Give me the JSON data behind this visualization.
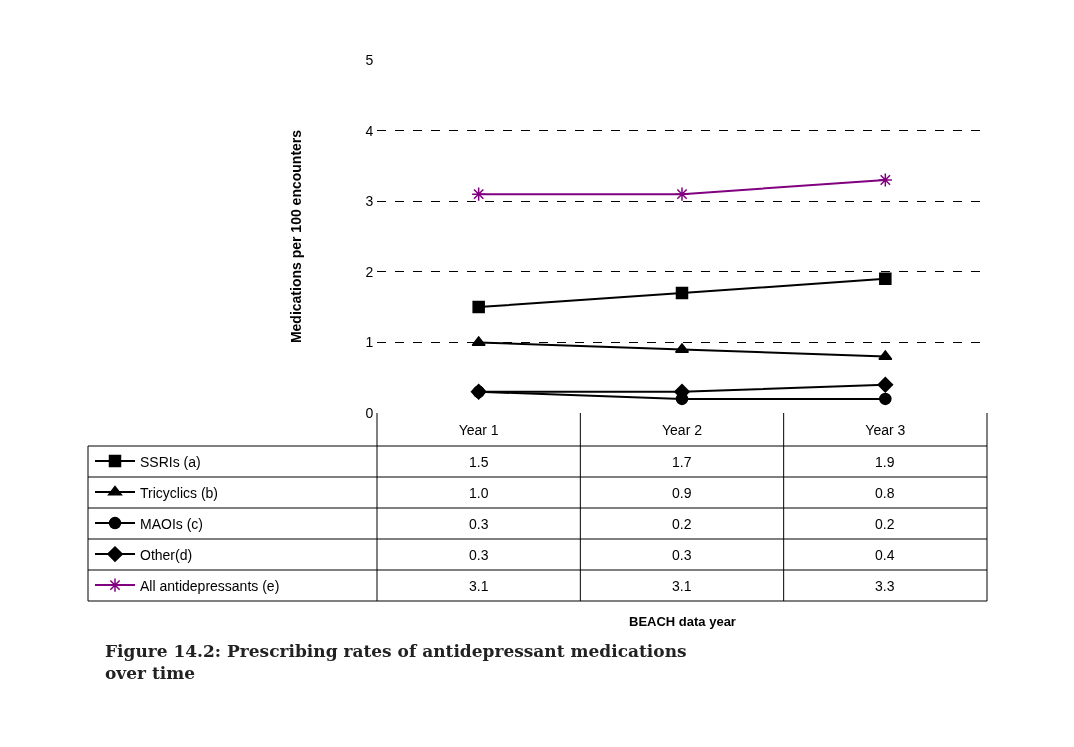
{
  "chart_data": {
    "type": "line",
    "title": "Figure 14.2: Prescribing rates of antidepressant medications over time",
    "ylabel": "Medications per 100 encounters",
    "annotations": [
      "BEACH data year"
    ],
    "categories": [
      "Year 1",
      "Year 2",
      "Year 3"
    ],
    "series": [
      {
        "name": "SSRIs (a)",
        "color": "#000000",
        "marker": "square",
        "values": [
          1.5,
          1.7,
          1.9
        ],
        "value_labels": [
          "1.5",
          "1.7",
          "1.9"
        ]
      },
      {
        "name": "Tricyclics (b)",
        "color": "#000000",
        "marker": "triangle",
        "values": [
          1.0,
          0.9,
          0.8
        ],
        "value_labels": [
          "1.0",
          "0.9",
          "0.8"
        ]
      },
      {
        "name": "MAOIs (c)",
        "color": "#000000",
        "marker": "circle",
        "values": [
          0.3,
          0.2,
          0.2
        ],
        "value_labels": [
          "0.3",
          "0.2",
          "0.2"
        ]
      },
      {
        "name": "Other(d)",
        "color": "#000000",
        "marker": "diamond",
        "values": [
          0.3,
          0.3,
          0.4
        ],
        "value_labels": [
          "0.3",
          "0.3",
          "0.4"
        ]
      },
      {
        "name": "All antidepressants (e)",
        "color": "#800080",
        "marker": "cross",
        "values": [
          3.1,
          3.1,
          3.3
        ],
        "value_labels": [
          "3.1",
          "3.1",
          "3.3"
        ]
      }
    ],
    "ylim": [
      0,
      5
    ],
    "yticks": [
      0,
      1,
      2,
      3,
      4,
      5
    ],
    "grid": "y",
    "legend": "bottom",
    "line_style": "solid"
  }
}
